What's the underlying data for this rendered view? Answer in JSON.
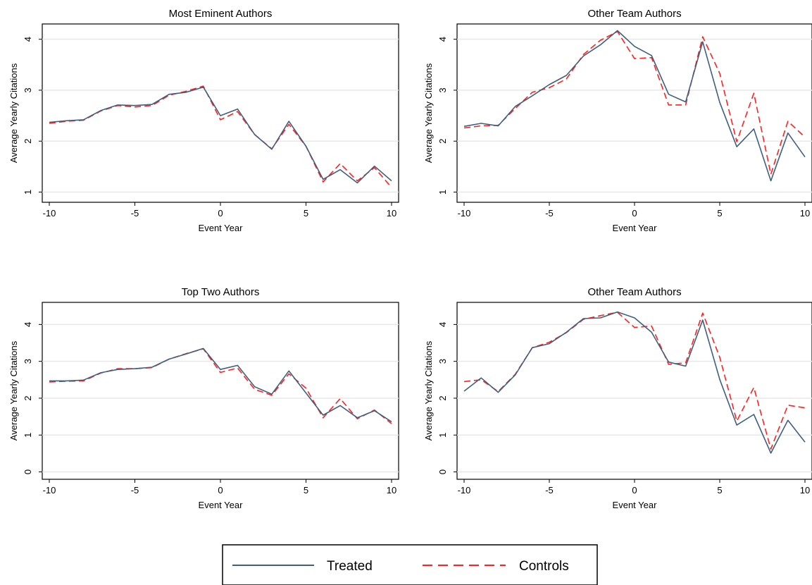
{
  "figure": {
    "legend": {
      "placement": "bottom",
      "entries": [
        {
          "label": "Treated",
          "color": "#3f5f7f",
          "style": "solid"
        },
        {
          "label": "Controls",
          "color": "#ff2020",
          "style": "dashed"
        }
      ]
    },
    "line_colors": {
      "treated": "#3f5f7f",
      "controls": "#ff2020"
    }
  },
  "chart_data": [
    {
      "type": "line",
      "title": "Most Eminent Authors",
      "xlabel": "Event Year",
      "ylabel": "Average Yearly Citations",
      "xlim": [
        -10,
        10
      ],
      "ylim": [
        0.8,
        4.3
      ],
      "xticks": [
        -10,
        -5,
        0,
        5,
        10
      ],
      "yticks": [
        1,
        2,
        3,
        4
      ],
      "grid": true,
      "x": [
        -10,
        -9,
        -8,
        -7,
        -6,
        -5,
        -4,
        -3,
        -2,
        -1,
        0,
        1,
        2,
        3,
        4,
        5,
        6,
        7,
        8,
        9,
        10
      ],
      "series": [
        {
          "name": "Treated",
          "values": [
            2.37,
            2.4,
            2.42,
            2.6,
            2.71,
            2.7,
            2.72,
            2.92,
            2.96,
            3.06,
            2.5,
            2.63,
            2.13,
            1.84,
            2.39,
            1.9,
            1.25,
            1.44,
            1.18,
            1.51,
            1.22
          ]
        },
        {
          "name": "Controls",
          "values": [
            2.35,
            2.39,
            2.41,
            2.59,
            2.7,
            2.67,
            2.7,
            2.9,
            2.98,
            3.08,
            2.42,
            2.58,
            2.13,
            1.85,
            2.33,
            1.9,
            1.2,
            1.56,
            1.22,
            1.48,
            1.09
          ]
        }
      ]
    },
    {
      "type": "line",
      "title": "Other Team Authors",
      "xlabel": "Event Year",
      "ylabel": "Average Yearly Citations",
      "xlim": [
        -10,
        10
      ],
      "ylim": [
        0.8,
        4.3
      ],
      "xticks": [
        -10,
        -5,
        0,
        5,
        10
      ],
      "yticks": [
        1,
        2,
        3,
        4
      ],
      "grid": true,
      "x": [
        -10,
        -9,
        -8,
        -7,
        -6,
        -5,
        -4,
        -3,
        -2,
        -1,
        0,
        1,
        2,
        3,
        4,
        5,
        6,
        7,
        8,
        9,
        10
      ],
      "series": [
        {
          "name": "Treated",
          "values": [
            2.29,
            2.35,
            2.3,
            2.68,
            2.89,
            3.11,
            3.29,
            3.67,
            3.89,
            4.17,
            3.86,
            3.68,
            2.92,
            2.77,
            3.95,
            2.76,
            1.89,
            2.24,
            1.22,
            2.16,
            1.69
          ]
        },
        {
          "name": "Controls",
          "values": [
            2.26,
            2.3,
            2.31,
            2.64,
            2.96,
            3.05,
            3.22,
            3.7,
            3.98,
            4.15,
            3.62,
            3.64,
            2.71,
            2.71,
            4.05,
            3.33,
            1.99,
            2.94,
            1.35,
            2.39,
            2.08
          ]
        }
      ]
    },
    {
      "type": "line",
      "title": "Top Two Authors",
      "xlabel": "Event Year",
      "ylabel": "Average Yearly Citations",
      "xlim": [
        -10,
        10
      ],
      "ylim": [
        -0.2,
        4.6
      ],
      "xticks": [
        -10,
        -5,
        0,
        5,
        10
      ],
      "yticks": [
        0,
        1,
        2,
        3,
        4
      ],
      "grid": true,
      "x": [
        -10,
        -9,
        -8,
        -7,
        -6,
        -5,
        -4,
        -3,
        -2,
        -1,
        0,
        1,
        2,
        3,
        4,
        5,
        6,
        7,
        8,
        9,
        10
      ],
      "series": [
        {
          "name": "Treated",
          "values": [
            2.47,
            2.47,
            2.49,
            2.69,
            2.78,
            2.8,
            2.84,
            3.06,
            3.2,
            3.35,
            2.78,
            2.89,
            2.31,
            2.11,
            2.74,
            2.14,
            1.54,
            1.8,
            1.47,
            1.66,
            1.36
          ]
        },
        {
          "name": "Controls",
          "values": [
            2.44,
            2.46,
            2.47,
            2.68,
            2.8,
            2.8,
            2.83,
            3.06,
            3.21,
            3.34,
            2.7,
            2.82,
            2.24,
            2.08,
            2.66,
            2.27,
            1.47,
            1.99,
            1.44,
            1.68,
            1.31
          ]
        }
      ]
    },
    {
      "type": "line",
      "title": "Other Team Authors",
      "xlabel": "Event Year",
      "ylabel": "Average Yearly Citations",
      "xlim": [
        -10,
        10
      ],
      "ylim": [
        -0.2,
        4.6
      ],
      "xticks": [
        -10,
        -5,
        0,
        5,
        10
      ],
      "yticks": [
        0,
        1,
        2,
        3,
        4
      ],
      "grid": true,
      "x": [
        -10,
        -9,
        -8,
        -7,
        -6,
        -5,
        -4,
        -3,
        -2,
        -1,
        0,
        1,
        2,
        3,
        4,
        5,
        6,
        7,
        8,
        9,
        10
      ],
      "series": [
        {
          "name": "Treated",
          "values": [
            2.19,
            2.55,
            2.16,
            2.63,
            3.37,
            3.48,
            3.79,
            4.16,
            4.18,
            4.34,
            4.18,
            3.79,
            2.98,
            2.87,
            4.12,
            2.51,
            1.27,
            1.56,
            0.51,
            1.4,
            0.81
          ]
        },
        {
          "name": "Controls",
          "values": [
            2.45,
            2.5,
            2.18,
            2.65,
            3.37,
            3.52,
            3.78,
            4.14,
            4.24,
            4.33,
            3.92,
            3.96,
            2.92,
            2.96,
            4.31,
            3.11,
            1.38,
            2.29,
            0.62,
            1.81,
            1.74
          ]
        }
      ]
    }
  ]
}
